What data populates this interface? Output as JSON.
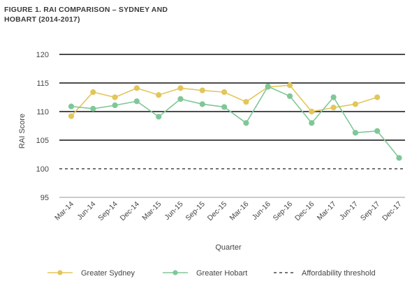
{
  "chart_data": {
    "type": "line",
    "title_lines": [
      "FIGURE 1. RAI COMPARISON – SYDNEY AND",
      "HOBART (2014-2017)"
    ],
    "xlabel": "Quarter",
    "ylabel": "RAI Score",
    "ylim": [
      95,
      120
    ],
    "yticks": [
      95,
      100,
      105,
      110,
      115,
      120
    ],
    "categories": [
      "Mar-14",
      "Jun-14",
      "Sep-14",
      "Dec-14",
      "Mar-15",
      "Jun-15",
      "Sep-15",
      "Dec-15",
      "Mar-16",
      "Jun-16",
      "Sep-16",
      "Dec-16",
      "Mar-17",
      "Jun-17",
      "Sep-17",
      "Dec-17"
    ],
    "series": [
      {
        "name": "Greater Sydney",
        "color": "#e3c65a",
        "values": [
          109.2,
          113.4,
          112.5,
          114.1,
          112.9,
          114.1,
          113.7,
          113.4,
          111.7,
          114.3,
          114.6,
          110.0,
          110.7,
          111.3,
          112.5,
          null
        ]
      },
      {
        "name": "Greater Hobart",
        "color": "#7fc797",
        "values": [
          110.9,
          110.5,
          111.1,
          111.8,
          109.1,
          112.2,
          111.3,
          110.8,
          108.0,
          114.4,
          112.7,
          108.0,
          112.5,
          106.3,
          106.6,
          101.9
        ]
      }
    ],
    "threshold": {
      "name": "Affordability threshold",
      "value": 100,
      "color": "#222222"
    },
    "grid": "major y gridlines",
    "legend_position": "bottom"
  }
}
